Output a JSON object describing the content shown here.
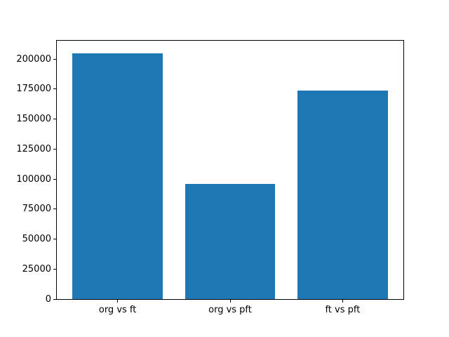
{
  "chart_data": {
    "type": "bar",
    "categories": [
      "org vs ft",
      "org vs pft",
      "ft vs pft"
    ],
    "values": [
      205000,
      96000,
      173500
    ],
    "title": "",
    "xlabel": "",
    "ylabel": "",
    "xlim": [
      -0.54,
      2.54
    ],
    "ylim": [
      0,
      215250
    ],
    "yticks": [
      0,
      25000,
      50000,
      75000,
      100000,
      125000,
      150000,
      175000,
      200000
    ],
    "ytick_labels": [
      "0",
      "25000",
      "50000",
      "75000",
      "100000",
      "125000",
      "150000",
      "175000",
      "200000"
    ],
    "bar_width": 0.8,
    "bar_color": "#1f77b4",
    "spine_color": "#000000",
    "text_color": "#000000",
    "background_color": "#ffffff",
    "grid": false,
    "legend": null
  }
}
